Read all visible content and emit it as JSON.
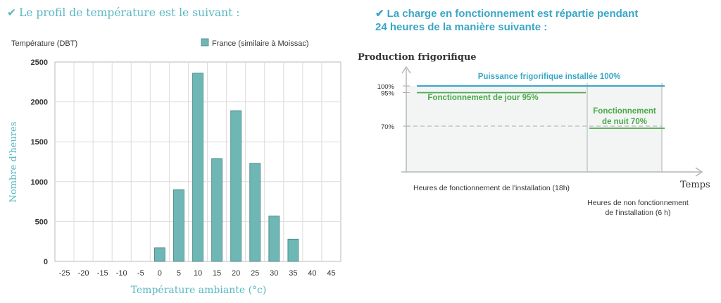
{
  "left_heading": "Le profil de température est le suivant :",
  "right_heading_line1": "La charge en fonctionnement est répartie pendant",
  "right_heading_line2": "24 heures de la manière suivante :",
  "chart_data": [
    {
      "type": "bar",
      "title": "",
      "subtitle": "Température (DBT)",
      "legend": [
        "France (similaire à Moissac)"
      ],
      "legend_placement": "top-right",
      "xlabel": "Température ambiante (°c)",
      "ylabel": "Nombre d'heures",
      "categories": [
        "-25",
        "-20",
        "-15",
        "-10",
        "-5",
        "0",
        "5",
        "10",
        "15",
        "20",
        "25",
        "30",
        "35",
        "40",
        "45"
      ],
      "series": [
        {
          "name": "France (similaire à Moissac)",
          "values": [
            0,
            0,
            0,
            0,
            0,
            170,
            900,
            2360,
            1290,
            1890,
            1230,
            570,
            280,
            0,
            0
          ]
        }
      ],
      "yticks": [
        "0",
        "500",
        "1000",
        "1500",
        "2000",
        "2500"
      ],
      "ylim": [
        0,
        2500
      ],
      "grid": true,
      "bar_color": "#6fb7b5"
    },
    {
      "type": "line",
      "title": "",
      "ylabel": "Production frigorifique",
      "xlabel": "Temps",
      "yticks": [
        "100%",
        "95%",
        "70%"
      ],
      "lines": [
        {
          "label": "Puissance frigorifique installée 100%",
          "value": 100,
          "x_start_h": 0,
          "x_end_h": 24,
          "color": "#3aa6c6"
        },
        {
          "label": "Fonctionnement de jour 95%",
          "value": 95,
          "x_start_h": 0,
          "x_end_h": 18,
          "color": "#4aa84a"
        },
        {
          "label_line1": "Fonctionnement",
          "label_line2": "de nuit 70%",
          "value": 70,
          "x_start_h": 18,
          "x_end_h": 24,
          "color": "#4aa84a"
        }
      ],
      "reference_line": {
        "value": 70,
        "style": "dashed"
      },
      "split_hour": 18,
      "total_hours": 24,
      "period_day_label": "Heures de fonctionnement de l'installation (18h)",
      "period_night_label_line1": "Heures de non fonctionnement",
      "period_night_label_line2": "de l'installation (6 h)"
    }
  ]
}
